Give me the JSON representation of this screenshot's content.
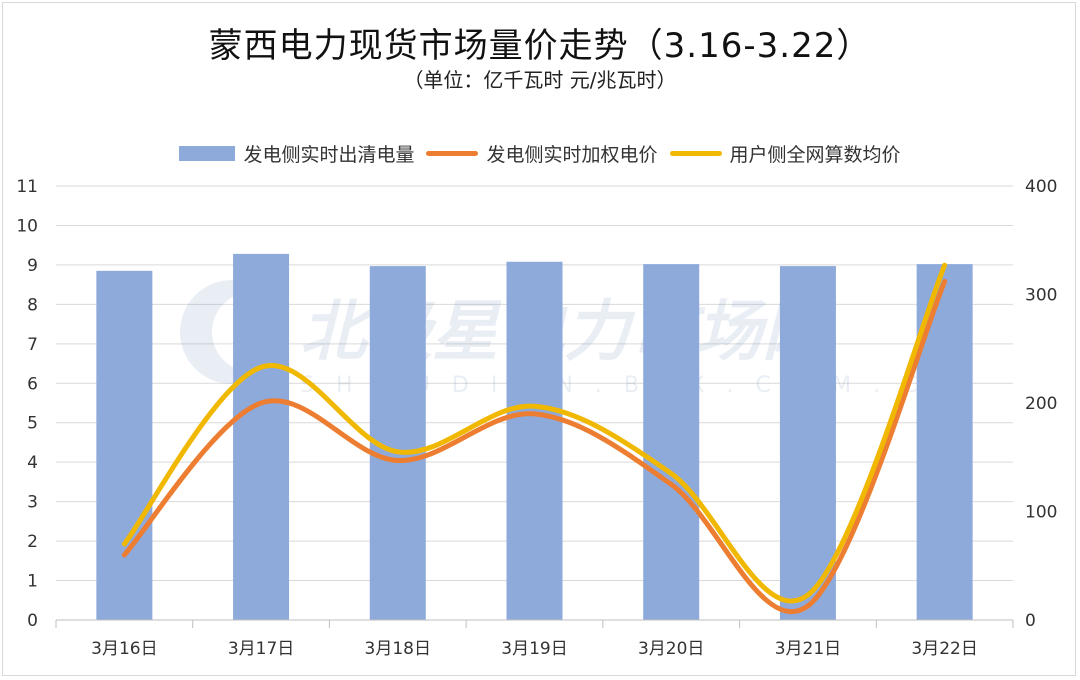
{
  "title": "蒙西电力现货市场量价走势（3.16-3.22）",
  "subtitle": "（单位：亿千瓦时 元/兆瓦时）",
  "watermark": {
    "text": "北极星电力市场网",
    "subtext": "SHOUDIAN.BJX.COM.CN"
  },
  "colors": {
    "bar": "#8eaadb",
    "line1": "#ed7d31",
    "line2": "#f0b800",
    "grid": "#d9d9d9"
  },
  "chart_data": {
    "type": "bar+line",
    "categories": [
      "3月16日",
      "3月17日",
      "3月18日",
      "3月19日",
      "3月20日",
      "3月21日",
      "3月22日"
    ],
    "series": [
      {
        "name": "发电侧实时出清电量",
        "type": "bar",
        "axis": "left",
        "values": [
          8.85,
          9.28,
          8.97,
          9.08,
          9.02,
          8.97,
          9.02
        ]
      },
      {
        "name": "发电侧实时加权电价",
        "type": "line",
        "axis": "right",
        "values": [
          60,
          200,
          147,
          190,
          125,
          13,
          312
        ]
      },
      {
        "name": "用户侧全网算数均价",
        "type": "line",
        "axis": "right",
        "values": [
          70,
          233,
          155,
          197,
          135,
          23,
          327
        ]
      }
    ],
    "left_axis": {
      "ylim": [
        0,
        11
      ],
      "ticks": [
        "0",
        "1",
        "2",
        "3",
        "4",
        "5",
        "6",
        "7",
        "8",
        "9",
        "10",
        "11"
      ]
    },
    "right_axis": {
      "ylim": [
        0,
        400
      ],
      "ticks": [
        "0",
        "100",
        "200",
        "300",
        "400"
      ]
    },
    "grid": true,
    "legend": "top"
  }
}
